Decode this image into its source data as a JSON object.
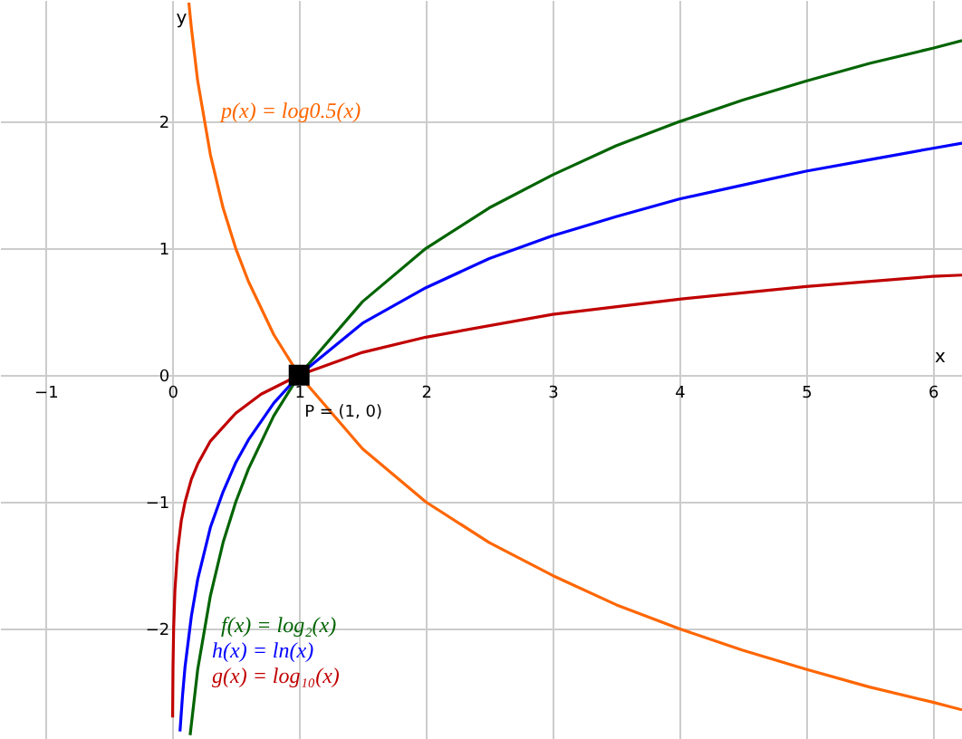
{
  "chart_data": {
    "type": "line",
    "xlabel": "x",
    "ylabel": "y",
    "xlim": [
      -1.36,
      6.23
    ],
    "ylim": [
      -2.87,
      2.96
    ],
    "xticks": [
      -1,
      0,
      1,
      2,
      3,
      4,
      5,
      6
    ],
    "yticks": [
      -2,
      -1,
      0,
      1,
      2
    ],
    "grid": true,
    "marker": "none",
    "line_style": "solid",
    "series": [
      {
        "name": "f(x) = log₂(x)",
        "color": "#006400",
        "x": [
          0.14,
          0.2,
          0.3,
          0.4,
          0.5,
          0.6,
          0.8,
          1,
          1.5,
          2,
          2.5,
          3,
          3.5,
          4,
          4.5,
          5,
          5.5,
          6,
          6.23
        ],
        "values": [
          -2.84,
          -2.32,
          -1.74,
          -1.32,
          -1,
          -0.74,
          -0.32,
          0,
          0.58,
          1,
          1.32,
          1.58,
          1.81,
          2,
          2.17,
          2.32,
          2.46,
          2.58,
          2.64
        ]
      },
      {
        "name": "h(x) = ln(x)",
        "color": "#0000ff",
        "x": [
          0.06,
          0.08,
          0.1,
          0.15,
          0.2,
          0.3,
          0.4,
          0.5,
          0.6,
          0.8,
          1,
          1.5,
          2,
          2.5,
          3,
          3.5,
          4,
          4.5,
          5,
          5.5,
          6,
          6.23
        ],
        "values": [
          -2.81,
          -2.53,
          -2.3,
          -1.9,
          -1.61,
          -1.2,
          -0.92,
          -0.69,
          -0.51,
          -0.22,
          0,
          0.41,
          0.69,
          0.92,
          1.1,
          1.25,
          1.39,
          1.5,
          1.61,
          1.7,
          1.79,
          1.83
        ]
      },
      {
        "name": "g(x) = log₁₀(x)",
        "color": "#c00000",
        "x": [
          0.002,
          0.005,
          0.01,
          0.02,
          0.04,
          0.07,
          0.1,
          0.15,
          0.2,
          0.3,
          0.5,
          0.7,
          1,
          1.5,
          2,
          3,
          4,
          5,
          6,
          6.23
        ],
        "values": [
          -2.7,
          -2.3,
          -2,
          -1.7,
          -1.4,
          -1.15,
          -1,
          -0.82,
          -0.7,
          -0.52,
          -0.3,
          -0.15,
          0,
          0.18,
          0.3,
          0.48,
          0.6,
          0.7,
          0.78,
          0.79
        ]
      },
      {
        "name": "p(x) = log0.5(x)",
        "color": "#ff6600",
        "x": [
          0.13,
          0.15,
          0.2,
          0.3,
          0.4,
          0.5,
          0.6,
          0.8,
          1,
          1.5,
          2,
          2.5,
          3,
          3.5,
          4,
          4.5,
          5,
          5.5,
          6,
          6.23
        ],
        "values": [
          2.94,
          2.74,
          2.32,
          1.74,
          1.32,
          1,
          0.74,
          0.32,
          0,
          -0.58,
          -1,
          -1.32,
          -1.58,
          -1.81,
          -2,
          -2.17,
          -2.32,
          -2.46,
          -2.58,
          -2.64
        ]
      },
      {
        "name": "P = (1, 0)",
        "type": "scatter",
        "marker": "square",
        "color": "#000000",
        "x": [
          1
        ],
        "values": [
          0
        ]
      }
    ]
  }
}
